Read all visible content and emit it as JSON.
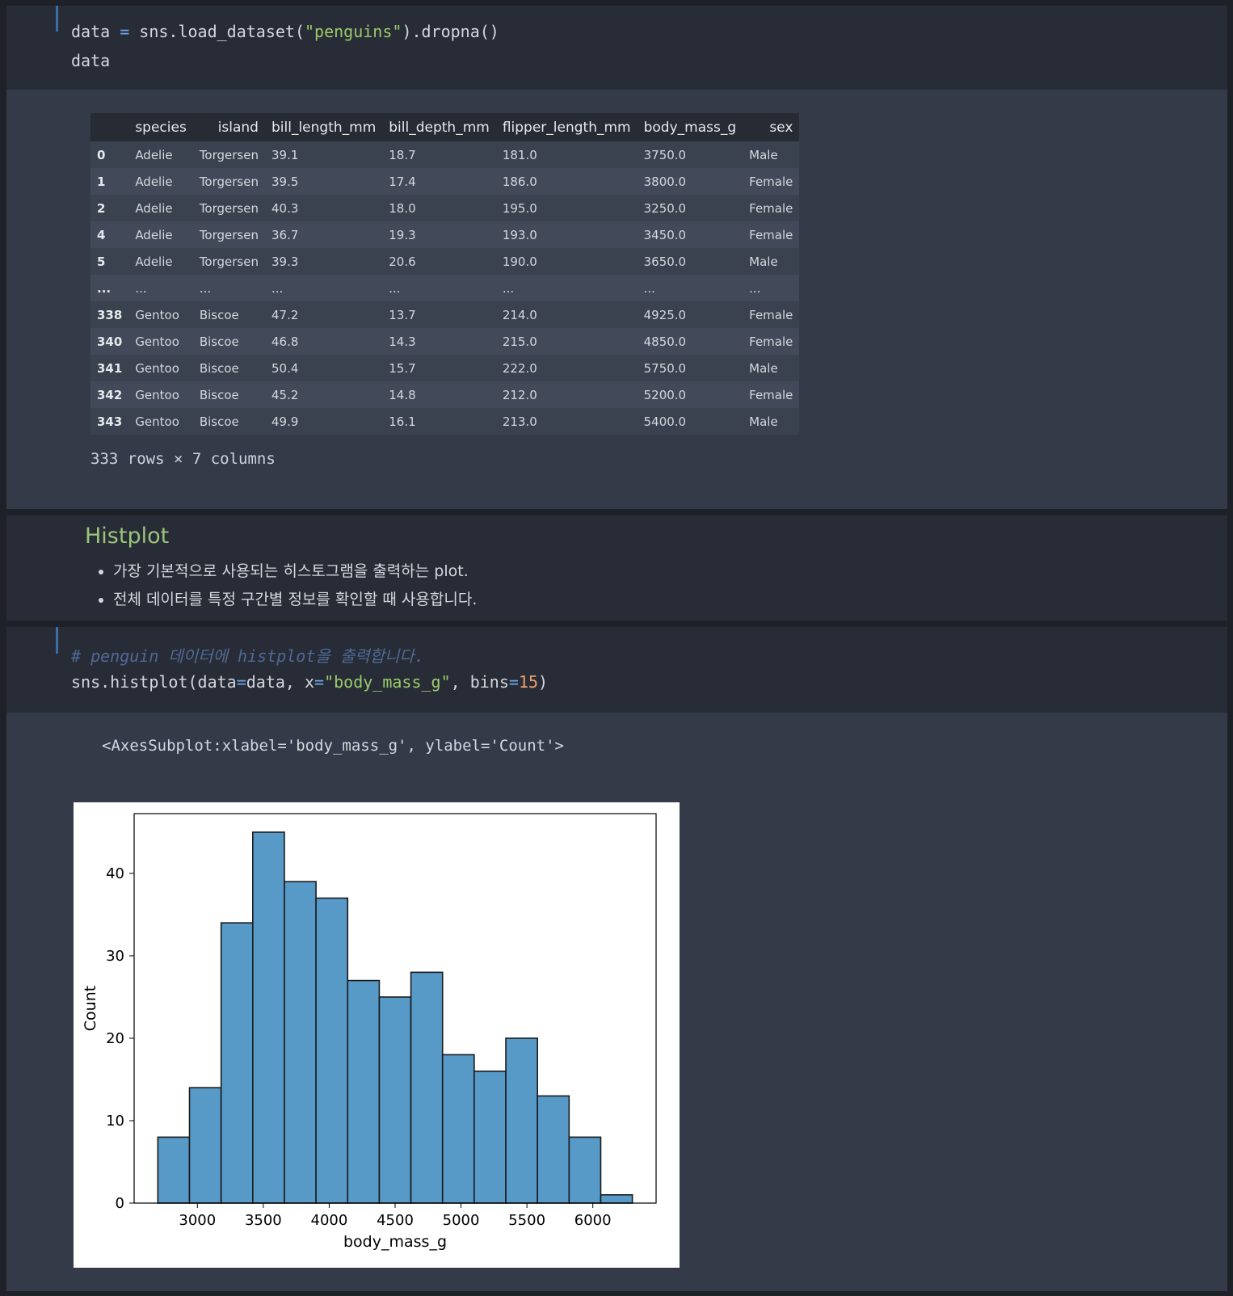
{
  "cell1": {
    "line1": {
      "a": "data ",
      "op": "=",
      "b": " sns.load_dataset(",
      "s": "\"penguins\"",
      "c": ").dropna()"
    },
    "line2": "data"
  },
  "df": {
    "columns": [
      "",
      "species",
      "island",
      "bill_length_mm",
      "bill_depth_mm",
      "flipper_length_mm",
      "body_mass_g",
      "sex"
    ],
    "rows": [
      [
        "0",
        "Adelie",
        "Torgersen",
        "39.1",
        "18.7",
        "181.0",
        "3750.0",
        "Male"
      ],
      [
        "1",
        "Adelie",
        "Torgersen",
        "39.5",
        "17.4",
        "186.0",
        "3800.0",
        "Female"
      ],
      [
        "2",
        "Adelie",
        "Torgersen",
        "40.3",
        "18.0",
        "195.0",
        "3250.0",
        "Female"
      ],
      [
        "4",
        "Adelie",
        "Torgersen",
        "36.7",
        "19.3",
        "193.0",
        "3450.0",
        "Female"
      ],
      [
        "5",
        "Adelie",
        "Torgersen",
        "39.3",
        "20.6",
        "190.0",
        "3650.0",
        "Male"
      ],
      [
        "...",
        "...",
        "...",
        "...",
        "...",
        "...",
        "...",
        "..."
      ],
      [
        "338",
        "Gentoo",
        "Biscoe",
        "47.2",
        "13.7",
        "214.0",
        "4925.0",
        "Female"
      ],
      [
        "340",
        "Gentoo",
        "Biscoe",
        "46.8",
        "14.3",
        "215.0",
        "4850.0",
        "Female"
      ],
      [
        "341",
        "Gentoo",
        "Biscoe",
        "50.4",
        "15.7",
        "222.0",
        "5750.0",
        "Male"
      ],
      [
        "342",
        "Gentoo",
        "Biscoe",
        "45.2",
        "14.8",
        "212.0",
        "5200.0",
        "Female"
      ],
      [
        "343",
        "Gentoo",
        "Biscoe",
        "49.9",
        "16.1",
        "213.0",
        "5400.0",
        "Male"
      ]
    ],
    "footer": "333 rows × 7 columns"
  },
  "markdown": {
    "title": "Histplot",
    "bullets": [
      "가장 기본적으로 사용되는 히스토그램을 출력하는 plot.",
      "전체 데이터를 특정 구간별 정보를 확인할 때 사용합니다."
    ]
  },
  "cell2": {
    "comment": "# penguin 데이터에 histplot을 출력합니다.",
    "code": {
      "a": "sns.histplot(data",
      "op1": "=",
      "b": "data, x",
      "op2": "=",
      "s": "\"body_mass_g\"",
      "c": ", bins",
      "op3": "=",
      "n": "15",
      "d": ")"
    }
  },
  "output2": {
    "repr": "<AxesSubplot:xlabel='body_mass_g', ylabel='Count'>"
  },
  "colors": {
    "bar_fill": "#5799c7",
    "bar_edge": "#1a1a1a",
    "string": "#9bcb6b",
    "keyword": "#6ea7e6",
    "number": "#f0a070",
    "heading": "#9bc37a"
  },
  "chart_data": {
    "type": "bar",
    "title": "",
    "xlabel": "body_mass_g",
    "ylabel": "Count",
    "bin_edges": [
      2700,
      2940,
      3180,
      3420,
      3660,
      3900,
      4140,
      4380,
      4620,
      4860,
      5100,
      5340,
      5580,
      5820,
      6060,
      6300
    ],
    "values": [
      8,
      14,
      34,
      45,
      39,
      37,
      27,
      25,
      28,
      18,
      16,
      20,
      13,
      8,
      1
    ],
    "xticks": [
      3000,
      3500,
      4000,
      4500,
      5000,
      5500,
      6000
    ],
    "yticks": [
      0,
      10,
      20,
      30,
      40
    ],
    "xlim": [
      2520,
      6480
    ],
    "ylim": [
      0,
      47.25
    ],
    "grid": false,
    "legend": "none"
  }
}
